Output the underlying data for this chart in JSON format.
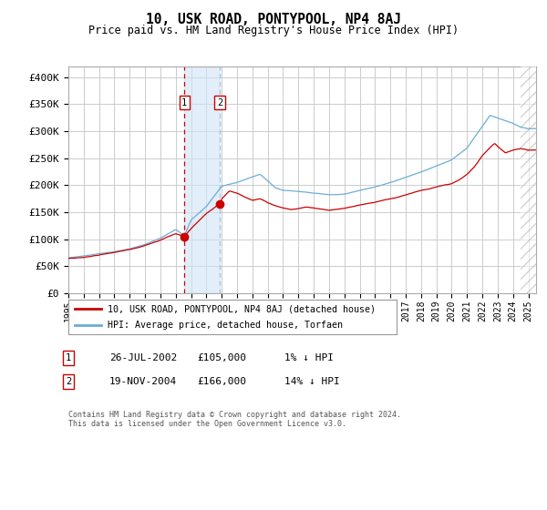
{
  "title": "10, USK ROAD, PONTYPOOL, NP4 8AJ",
  "subtitle": "Price paid vs. HM Land Registry's House Price Index (HPI)",
  "hpi_label": "HPI: Average price, detached house, Torfaen",
  "property_label": "10, USK ROAD, PONTYPOOL, NP4 8AJ (detached house)",
  "footer": "Contains HM Land Registry data © Crown copyright and database right 2024.\nThis data is licensed under the Open Government Licence v3.0.",
  "transactions": [
    {
      "num": 1,
      "date": "26-JUL-2002",
      "price": 105000,
      "rel": "1% ↓ HPI",
      "x": 2002.57
    },
    {
      "num": 2,
      "date": "19-NOV-2004",
      "price": 166000,
      "rel": "14% ↓ HPI",
      "x": 2004.88
    }
  ],
  "ylim": [
    0,
    420000
  ],
  "xlim_start": 1995.0,
  "xlim_end": 2025.5,
  "yticks": [
    0,
    50000,
    100000,
    150000,
    200000,
    250000,
    300000,
    350000,
    400000
  ],
  "ytick_labels": [
    "£0",
    "£50K",
    "£100K",
    "£150K",
    "£200K",
    "£250K",
    "£300K",
    "£350K",
    "£400K"
  ],
  "xticks": [
    1995,
    1996,
    1997,
    1998,
    1999,
    2000,
    2001,
    2002,
    2003,
    2004,
    2005,
    2006,
    2007,
    2008,
    2009,
    2010,
    2011,
    2012,
    2013,
    2014,
    2015,
    2016,
    2017,
    2018,
    2019,
    2020,
    2021,
    2022,
    2023,
    2024,
    2025
  ],
  "hpi_color": "#6baed6",
  "property_color": "#cc0000",
  "shade_color": "#d0e4f5",
  "dashed_color": "#cc0000",
  "hatch_color": "#aaaaaa",
  "background_color": "#ffffff",
  "grid_color": "#cccccc",
  "hpi_keypoints": [
    [
      1995.0,
      65000
    ],
    [
      1996.0,
      68000
    ],
    [
      1997.0,
      72000
    ],
    [
      1998.0,
      76000
    ],
    [
      1999.0,
      82000
    ],
    [
      2000.0,
      90000
    ],
    [
      2001.0,
      102000
    ],
    [
      2002.0,
      118000
    ],
    [
      2002.57,
      106000
    ],
    [
      2003.0,
      135000
    ],
    [
      2004.0,
      160000
    ],
    [
      2004.88,
      193000
    ],
    [
      2005.0,
      198000
    ],
    [
      2006.0,
      205000
    ],
    [
      2007.0,
      215000
    ],
    [
      2007.5,
      220000
    ],
    [
      2008.0,
      208000
    ],
    [
      2008.5,
      195000
    ],
    [
      2009.0,
      190000
    ],
    [
      2010.0,
      188000
    ],
    [
      2011.0,
      185000
    ],
    [
      2012.0,
      182000
    ],
    [
      2013.0,
      183000
    ],
    [
      2014.0,
      190000
    ],
    [
      2015.0,
      197000
    ],
    [
      2016.0,
      205000
    ],
    [
      2017.0,
      215000
    ],
    [
      2018.0,
      225000
    ],
    [
      2019.0,
      237000
    ],
    [
      2020.0,
      248000
    ],
    [
      2021.0,
      270000
    ],
    [
      2021.5,
      290000
    ],
    [
      2022.0,
      310000
    ],
    [
      2022.5,
      330000
    ],
    [
      2023.0,
      325000
    ],
    [
      2023.5,
      320000
    ],
    [
      2024.0,
      315000
    ],
    [
      2024.5,
      308000
    ],
    [
      2025.0,
      305000
    ]
  ],
  "prop_keypoints": [
    [
      1995.0,
      65000
    ],
    [
      1996.0,
      67000
    ],
    [
      1997.0,
      71000
    ],
    [
      1998.0,
      75000
    ],
    [
      1999.0,
      80000
    ],
    [
      2000.0,
      88000
    ],
    [
      2001.0,
      98000
    ],
    [
      2002.0,
      110000
    ],
    [
      2002.57,
      105000
    ],
    [
      2003.0,
      120000
    ],
    [
      2004.0,
      148000
    ],
    [
      2004.88,
      166000
    ],
    [
      2005.0,
      175000
    ],
    [
      2005.5,
      190000
    ],
    [
      2006.0,
      185000
    ],
    [
      2006.5,
      178000
    ],
    [
      2007.0,
      172000
    ],
    [
      2007.5,
      175000
    ],
    [
      2008.0,
      168000
    ],
    [
      2008.5,
      162000
    ],
    [
      2009.0,
      158000
    ],
    [
      2009.5,
      155000
    ],
    [
      2010.0,
      157000
    ],
    [
      2010.5,
      160000
    ],
    [
      2011.0,
      158000
    ],
    [
      2011.5,
      155000
    ],
    [
      2012.0,
      153000
    ],
    [
      2012.5,
      155000
    ],
    [
      2013.0,
      157000
    ],
    [
      2013.5,
      160000
    ],
    [
      2014.0,
      163000
    ],
    [
      2014.5,
      166000
    ],
    [
      2015.0,
      168000
    ],
    [
      2015.5,
      172000
    ],
    [
      2016.0,
      175000
    ],
    [
      2016.5,
      178000
    ],
    [
      2017.0,
      182000
    ],
    [
      2017.5,
      186000
    ],
    [
      2018.0,
      190000
    ],
    [
      2018.5,
      193000
    ],
    [
      2019.0,
      197000
    ],
    [
      2019.5,
      200000
    ],
    [
      2020.0,
      203000
    ],
    [
      2020.5,
      210000
    ],
    [
      2021.0,
      220000
    ],
    [
      2021.5,
      235000
    ],
    [
      2022.0,
      255000
    ],
    [
      2022.5,
      270000
    ],
    [
      2022.8,
      278000
    ],
    [
      2023.0,
      272000
    ],
    [
      2023.5,
      260000
    ],
    [
      2024.0,
      265000
    ],
    [
      2024.5,
      268000
    ],
    [
      2025.0,
      265000
    ]
  ]
}
